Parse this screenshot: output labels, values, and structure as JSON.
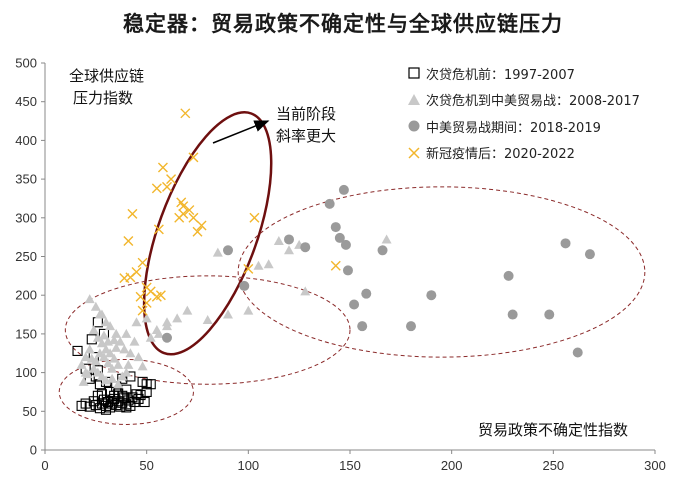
{
  "title": "稳定器：贸易政策不确定性与全球供应链压力",
  "chart_data": {
    "type": "scatter",
    "title": "稳定器：贸易政策不确定性与全球供应链压力",
    "xlabel": "贸易政策不确定性指数",
    "ylabel": "全球供应链压力指数",
    "ylabel_lines": [
      "全球供应链",
      "压力指数"
    ],
    "xlim": [
      0,
      300
    ],
    "ylim": [
      0,
      500
    ],
    "xticks": [
      0,
      50,
      100,
      150,
      200,
      250,
      300
    ],
    "yticks": [
      0,
      50,
      100,
      150,
      200,
      250,
      300,
      350,
      400,
      450,
      500
    ],
    "grid": false,
    "legend_position": "top-right",
    "annotation_lines": [
      "当前阶段",
      "斜率更大"
    ],
    "series": [
      {
        "name": "次贷危机前：1997-2007",
        "marker": "open-square",
        "color": "#000000",
        "points": [
          [
            18,
            57
          ],
          [
            20,
            60
          ],
          [
            22,
            56
          ],
          [
            24,
            63
          ],
          [
            25,
            58
          ],
          [
            26,
            70
          ],
          [
            27,
            54
          ],
          [
            28,
            60
          ],
          [
            29,
            65
          ],
          [
            30,
            57
          ],
          [
            31,
            62
          ],
          [
            32,
            55
          ],
          [
            33,
            60
          ],
          [
            34,
            66
          ],
          [
            35,
            58
          ],
          [
            36,
            63
          ],
          [
            37,
            56
          ],
          [
            38,
            61
          ],
          [
            39,
            68
          ],
          [
            40,
            59
          ],
          [
            41,
            64
          ],
          [
            42,
            57
          ],
          [
            44,
            62
          ],
          [
            46,
            66
          ],
          [
            47,
            71
          ],
          [
            48,
            88
          ],
          [
            52,
            85
          ],
          [
            50,
            75
          ],
          [
            40,
            78
          ],
          [
            35,
            82
          ],
          [
            38,
            92
          ],
          [
            42,
            95
          ],
          [
            30,
            88
          ],
          [
            27,
            85
          ],
          [
            25,
            95
          ],
          [
            22,
            92
          ],
          [
            20,
            105
          ],
          [
            24,
            120
          ],
          [
            26,
            103
          ],
          [
            28,
            72
          ],
          [
            32,
            75
          ],
          [
            34,
            70
          ],
          [
            36,
            73
          ],
          [
            40,
            55
          ],
          [
            43,
            68
          ],
          [
            30,
            52
          ],
          [
            16,
            128
          ],
          [
            23,
            143
          ],
          [
            29,
            150
          ],
          [
            26,
            165
          ],
          [
            50,
            85
          ],
          [
            49,
            62
          ],
          [
            45,
            72
          ],
          [
            38,
            70
          ]
        ]
      },
      {
        "name": "次贷危机到中美贸易战：2008-2017",
        "marker": "triangle",
        "color": "#c8c8c8",
        "points": [
          [
            22,
            195
          ],
          [
            25,
            185
          ],
          [
            28,
            175
          ],
          [
            30,
            165
          ],
          [
            32,
            160
          ],
          [
            35,
            150
          ],
          [
            24,
            155
          ],
          [
            26,
            145
          ],
          [
            28,
            138
          ],
          [
            30,
            130
          ],
          [
            32,
            125
          ],
          [
            34,
            118
          ],
          [
            36,
            110
          ],
          [
            22,
            130
          ],
          [
            20,
            120
          ],
          [
            18,
            110
          ],
          [
            24,
            105
          ],
          [
            26,
            100
          ],
          [
            28,
            95
          ],
          [
            30,
            90
          ],
          [
            20,
            100
          ],
          [
            33,
            105
          ],
          [
            38,
            95
          ],
          [
            40,
            100
          ],
          [
            37,
            140
          ],
          [
            42,
            125
          ],
          [
            45,
            165
          ],
          [
            50,
            170
          ],
          [
            55,
            155
          ],
          [
            60,
            165
          ],
          [
            65,
            170
          ],
          [
            70,
            180
          ],
          [
            80,
            168
          ],
          [
            90,
            175
          ],
          [
            100,
            180
          ],
          [
            105,
            238
          ],
          [
            110,
            240
          ],
          [
            115,
            270
          ],
          [
            120,
            258
          ],
          [
            125,
            265
          ],
          [
            128,
            205
          ],
          [
            168,
            272
          ],
          [
            85,
            255
          ],
          [
            27,
            175
          ],
          [
            29,
            148
          ],
          [
            31,
            112
          ],
          [
            23,
            118
          ],
          [
            35,
            132
          ],
          [
            40,
            150
          ],
          [
            44,
            140
          ],
          [
            21,
            98
          ],
          [
            19,
            88
          ],
          [
            33,
            92
          ],
          [
            36,
            85
          ],
          [
            39,
            130
          ],
          [
            41,
            110
          ],
          [
            46,
            120
          ],
          [
            48,
            108
          ],
          [
            25,
            115
          ],
          [
            27,
            125
          ],
          [
            29,
            120
          ],
          [
            31,
            140
          ],
          [
            34,
            142
          ],
          [
            52,
            145
          ],
          [
            56,
            150
          ],
          [
            60,
            160
          ]
        ]
      },
      {
        "name": "中美贸易战期间：2018-2019",
        "marker": "filled-circle",
        "color": "#9a9a9a",
        "points": [
          [
            90,
            258
          ],
          [
            98,
            212
          ],
          [
            120,
            272
          ],
          [
            128,
            262
          ],
          [
            140,
            318
          ],
          [
            147,
            336
          ],
          [
            143,
            288
          ],
          [
            145,
            274
          ],
          [
            148,
            265
          ],
          [
            149,
            232
          ],
          [
            152,
            188
          ],
          [
            156,
            160
          ],
          [
            158,
            202
          ],
          [
            166,
            258
          ],
          [
            180,
            160
          ],
          [
            190,
            200
          ],
          [
            228,
            225
          ],
          [
            230,
            175
          ],
          [
            248,
            175
          ],
          [
            256,
            267
          ],
          [
            262,
            126
          ],
          [
            268,
            253
          ],
          [
            60,
            145
          ]
        ]
      },
      {
        "name": "新冠疫情后：2020-2022",
        "marker": "x",
        "color": "#f2b62c",
        "points": [
          [
            69,
            435
          ],
          [
            73,
            378
          ],
          [
            58,
            365
          ],
          [
            62,
            350
          ],
          [
            60,
            340
          ],
          [
            55,
            338
          ],
          [
            67,
            320
          ],
          [
            68,
            315
          ],
          [
            71,
            310
          ],
          [
            68,
            305
          ],
          [
            66,
            300
          ],
          [
            73,
            300
          ],
          [
            75,
            282
          ],
          [
            77,
            290
          ],
          [
            56,
            285
          ],
          [
            43,
            305
          ],
          [
            41,
            270
          ],
          [
            39,
            222
          ],
          [
            42,
            223
          ],
          [
            48,
            242
          ],
          [
            50,
            210
          ],
          [
            52,
            205
          ],
          [
            57,
            200
          ],
          [
            55,
            198
          ],
          [
            47,
            198
          ],
          [
            50,
            190
          ],
          [
            48,
            180
          ],
          [
            45,
            230
          ],
          [
            103,
            300
          ],
          [
            100,
            234
          ],
          [
            143,
            238
          ]
        ]
      }
    ],
    "ellipses": [
      {
        "cx": 80,
        "cy": 280,
        "rx": 44,
        "ry": 183,
        "angle_deg": 20,
        "color": "#6e0f0f",
        "style": "solid"
      },
      {
        "cx": 195,
        "cy": 230,
        "rx": 100,
        "ry": 110,
        "color": "#8b2a2a",
        "style": "dashed"
      },
      {
        "cx": 80,
        "cy": 155,
        "rx": 70,
        "ry": 70,
        "color": "#8b2a2a",
        "style": "dashed"
      },
      {
        "cx": 40,
        "cy": 75,
        "rx": 33,
        "ry": 42,
        "color": "#8b2a2a",
        "style": "dashed"
      }
    ]
  }
}
